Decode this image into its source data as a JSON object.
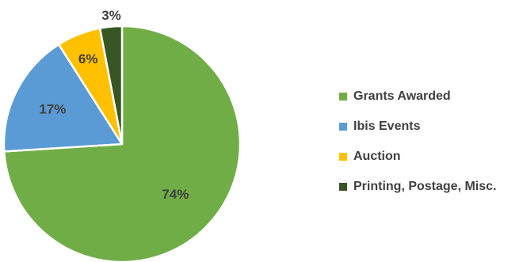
{
  "chart_data": {
    "type": "pie",
    "categories": [
      "Grants Awarded",
      "Ibis Events",
      "Auction",
      "Printing, Postage, Misc."
    ],
    "values": [
      74,
      17,
      6,
      3
    ],
    "labels": [
      "74%",
      "17%",
      "6%",
      "3%"
    ],
    "colors": [
      "#70ad47",
      "#5b9bd5",
      "#ffc000",
      "#375623"
    ],
    "start_angle_deg": 0,
    "direction": "clockwise",
    "legend": "right"
  }
}
